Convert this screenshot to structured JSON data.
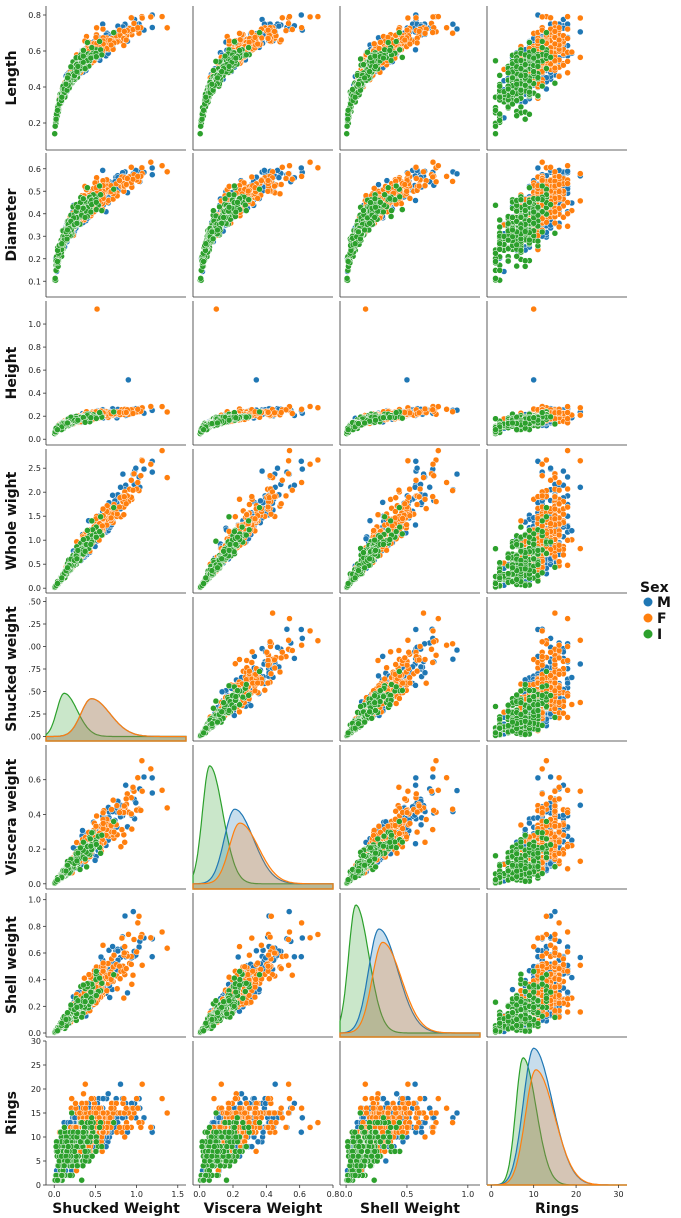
{
  "chart_data": {
    "type": "scatter",
    "title": "",
    "figure_kind": "pairplot",
    "hue": "Sex",
    "legend": {
      "title": "Sex",
      "placement": "right",
      "entries": [
        {
          "label": "M",
          "color": "#1f77b4"
        },
        {
          "label": "F",
          "color": "#ff7f0e"
        },
        {
          "label": "I",
          "color": "#2ca02c"
        }
      ]
    },
    "diag_kind": "kde",
    "row_variables": [
      "Length",
      "Diameter",
      "Height",
      "Whole wight",
      "Shucked weight",
      "Viscera weight",
      "Shell weight",
      "Rings"
    ],
    "column_variables": [
      "Shucked Weight",
      "Viscera Weight",
      "Shell Weight",
      "Rings"
    ],
    "ranges": {
      "Shucked Weight": [
        -0.1,
        1.6
      ],
      "Viscera Weight": [
        -0.04,
        0.8
      ],
      "Shell Weight": [
        -0.05,
        1.1
      ],
      "Rings": [
        -1,
        32
      ],
      "Length": [
        0.05,
        0.85
      ],
      "Diameter": [
        0.03,
        0.67
      ],
      "Height": [
        -0.05,
        1.2
      ],
      "Whole wight": [
        -0.1,
        2.9
      ],
      "Shucked weight": [
        -0.05,
        1.55
      ],
      "Viscera weight": [
        -0.03,
        0.8
      ],
      "Shell weight": [
        -0.03,
        1.05
      ],
      "Rings_row": [
        0,
        30
      ]
    },
    "y_ticks": {
      "Length": [
        "0.2",
        "0.4",
        "0.6",
        "0.8"
      ],
      "Diameter": [
        "0.1",
        "0.2",
        "0.3",
        "0.4",
        "0.5",
        "0.6"
      ],
      "Height": [
        "0.0",
        "0.2",
        "0.4",
        "0.6",
        "0.8",
        "1.0"
      ],
      "Whole wight": [
        "0.0",
        "0.5",
        "1.0",
        "1.5",
        "2.0",
        "2.5"
      ],
      "Shucked weight": [
        "0.00",
        "0.25",
        "0.50",
        "0.75",
        "1.00",
        "1.25",
        "1.50"
      ],
      "Shucked weight_shown": [
        ".00",
        ".25",
        ".50",
        ".75",
        ".00",
        ".25",
        ".50"
      ],
      "Viscera weight": [
        "0.0",
        "0.2",
        "0.4",
        "0.6"
      ],
      "Shell weight": [
        "0.0",
        "0.2",
        "0.4",
        "0.6",
        "0.8",
        "1.0"
      ],
      "Rings": [
        "0",
        "5",
        "10",
        "15",
        "20",
        "25",
        "30"
      ]
    },
    "x_ticks": {
      "Shucked Weight": [
        "0.0",
        "0.5",
        "1.0",
        "1.5"
      ],
      "Viscera Weight": [
        "0.0",
        "0.2",
        "0.4",
        "0.6",
        "0.8"
      ],
      "Shell Weight": [
        "0.0",
        "0.5",
        "1.0"
      ],
      "Rings": [
        "0",
        "10",
        "20",
        "30"
      ]
    },
    "notable_points": {
      "Height_outlier": 1.13,
      "Height_second": 0.515
    },
    "kde_peaks": {
      "Shucked Weight": {
        "I": {
          "mode": 0.12,
          "height": 0.48
        },
        "M": {
          "mode": 0.45,
          "height": 0.42
        },
        "F": {
          "mode": 0.45,
          "height": 0.42
        }
      },
      "Viscera Weight": {
        "I": {
          "mode": 0.06,
          "height": 0.68
        },
        "M": {
          "mode": 0.21,
          "height": 0.43
        },
        "F": {
          "mode": 0.24,
          "height": 0.35
        }
      },
      "Shell Weight": {
        "I": {
          "mode": 0.08,
          "height": 0.96
        },
        "M": {
          "mode": 0.27,
          "height": 0.78
        },
        "F": {
          "mode": 0.3,
          "height": 0.68
        }
      },
      "Rings": {
        "I": {
          "mode": 7.5,
          "height": 26.5
        },
        "M": {
          "mode": 10,
          "height": 28.5
        },
        "F": {
          "mode": 10.5,
          "height": 24
        }
      }
    }
  }
}
